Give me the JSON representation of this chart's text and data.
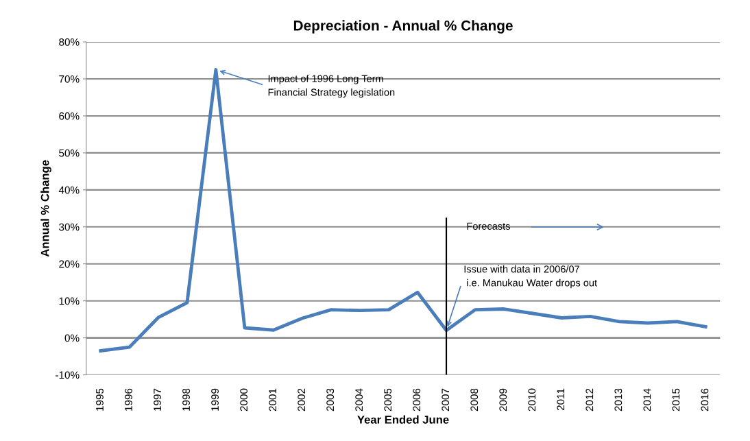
{
  "chart_data": {
    "type": "line",
    "title": "Depreciation - Annual % Change",
    "xlabel": "Year Ended June",
    "ylabel": "Annual % Change",
    "categories": [
      "1995",
      "1996",
      "1997",
      "1998",
      "1999",
      "2000",
      "2001",
      "2002",
      "2003",
      "2004",
      "2005",
      "2006",
      "2007",
      "2008",
      "2009",
      "2010",
      "2011",
      "2012",
      "2013",
      "2014",
      "2015",
      "2016"
    ],
    "series": [
      {
        "color": "#4a7ebb",
        "values": [
          -3.5,
          -2.5,
          5.5,
          9.5,
          72.5,
          2.7,
          2.1,
          5.3,
          7.6,
          7.4,
          7.6,
          12.3,
          2.0,
          7.6,
          7.8,
          6.6,
          5.4,
          5.8,
          4.4,
          4.0,
          4.4,
          3.0
        ]
      }
    ],
    "ylim": [
      -10,
      80
    ],
    "yticks": [
      {
        "value": -10,
        "label": "-10%"
      },
      {
        "value": 0,
        "label": "0%"
      },
      {
        "value": 10,
        "label": "10%"
      },
      {
        "value": 20,
        "label": "20%"
      },
      {
        "value": 30,
        "label": "30%"
      },
      {
        "value": 40,
        "label": "40%"
      },
      {
        "value": 50,
        "label": "50%"
      },
      {
        "value": 60,
        "label": "60%"
      },
      {
        "value": 70,
        "label": "70%"
      },
      {
        "value": 80,
        "label": "80%"
      }
    ],
    "grid": "y",
    "marker": "none",
    "line_style": "solid",
    "ref_lines": [
      {
        "axis": "x",
        "value": "2007",
        "color": "#000000"
      }
    ],
    "annotations": [
      {
        "text": "Impact of 1996 Long Term\nFinancial Strategy legislation",
        "x": "1999",
        "y": 72.5
      },
      "Forecasts",
      {
        "text": "Issue with data in 2006/07\n i.e. Manukau Water drops out",
        "x": "2007",
        "y": 2.0
      }
    ]
  }
}
